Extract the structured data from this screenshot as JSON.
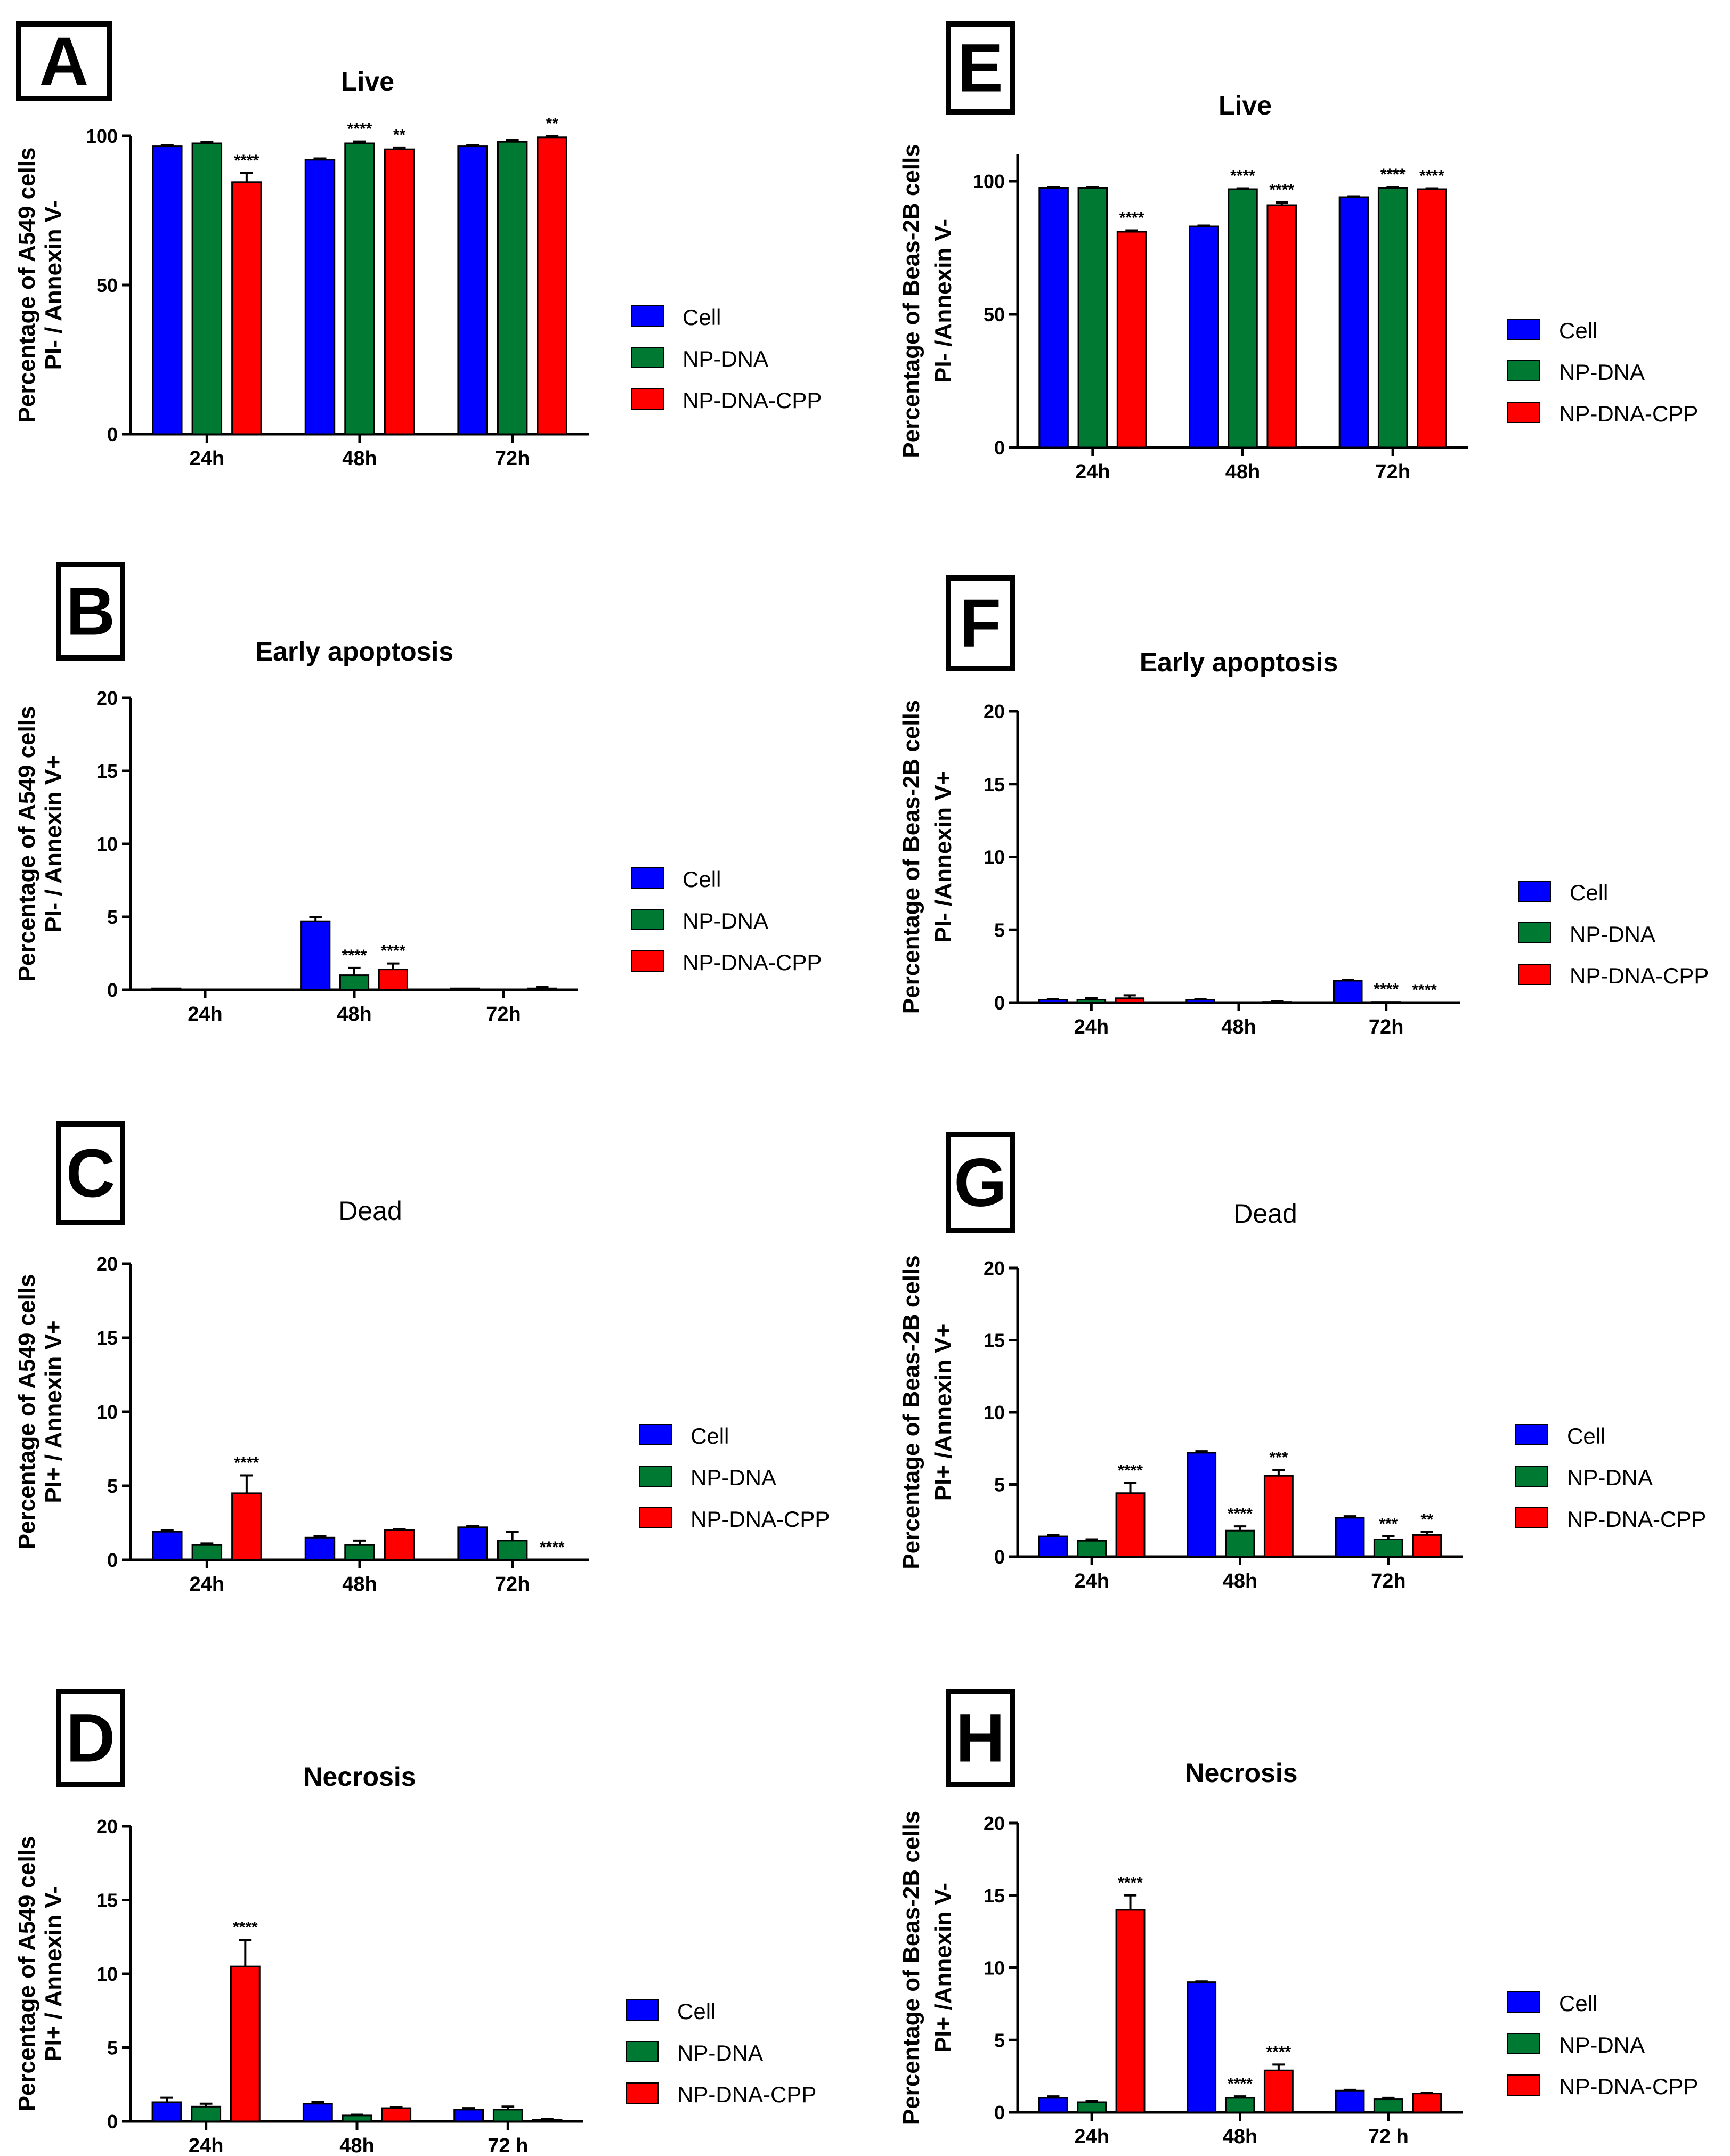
{
  "figure": {
    "colors": {
      "cell": "#0000ff",
      "npdna": "#007a33",
      "npdnacpp": "#ff0000"
    }
  },
  "chart_data": [
    {
      "panel": "A",
      "type": "bar",
      "title": "Live",
      "title_bold": true,
      "ylabel": [
        "Percentage of  A549 cells",
        "PI- / Annexin V-"
      ],
      "categories": [
        "24h",
        "48h",
        "72h"
      ],
      "ylim": [
        0,
        100
      ],
      "yticks": [
        0,
        50,
        100
      ],
      "legend": [
        "Cell",
        "NP-DNA",
        "NP-DNA-CPP"
      ],
      "series": [
        {
          "name": "Cell",
          "values": [
            96.5,
            92.0,
            96.5
          ],
          "errors": [
            0.4,
            0.4,
            0.4
          ],
          "annotations": [
            "",
            "",
            ""
          ]
        },
        {
          "name": "NP-DNA",
          "values": [
            97.5,
            97.5,
            98.0
          ],
          "errors": [
            0.4,
            0.6,
            0.6
          ],
          "annotations": [
            "",
            "****",
            ""
          ]
        },
        {
          "name": "NP-DNA-CPP",
          "values": [
            84.5,
            95.5,
            99.5
          ],
          "errors": [
            3.0,
            0.6,
            0.4
          ],
          "annotations": [
            "****",
            "**",
            "**"
          ]
        }
      ]
    },
    {
      "panel": "B",
      "type": "bar",
      "title": "Early apoptosis",
      "title_bold": true,
      "ylabel": [
        "Percentage of  A549 cells",
        "PI- / Annexin V+"
      ],
      "categories": [
        "24h",
        "48h",
        "72h"
      ],
      "ylim": [
        0,
        20
      ],
      "yticks": [
        0,
        5,
        10,
        15,
        20
      ],
      "legend": [
        "Cell",
        "NP-DNA",
        "NP-DNA-CPP"
      ],
      "series": [
        {
          "name": "Cell",
          "values": [
            0.1,
            4.7,
            0.1
          ],
          "errors": [
            0,
            0.3,
            0
          ],
          "annotations": [
            "",
            "",
            ""
          ]
        },
        {
          "name": "NP-DNA",
          "values": [
            0,
            1.0,
            0
          ],
          "errors": [
            0,
            0.5,
            0
          ],
          "annotations": [
            "",
            "****",
            ""
          ]
        },
        {
          "name": "NP-DNA-CPP",
          "values": [
            0,
            1.4,
            0.1
          ],
          "errors": [
            0,
            0.4,
            0.1
          ],
          "annotations": [
            "",
            "****",
            ""
          ]
        }
      ]
    },
    {
      "panel": "C",
      "type": "bar",
      "title": "Dead",
      "title_bold": false,
      "ylabel": [
        "Percentage of  A549 cells",
        "PI+ / Annexin V+"
      ],
      "categories": [
        "24h",
        "48h",
        "72h"
      ],
      "ylim": [
        0,
        20
      ],
      "yticks": [
        0,
        5,
        10,
        15,
        20
      ],
      "legend": [
        "Cell",
        "NP-DNA",
        "NP-DNA-CPP"
      ],
      "series": [
        {
          "name": "Cell",
          "values": [
            1.9,
            1.5,
            2.2
          ],
          "errors": [
            0.1,
            0.1,
            0.1
          ],
          "annotations": [
            "",
            "",
            ""
          ]
        },
        {
          "name": "NP-DNA",
          "values": [
            1.0,
            1.0,
            1.3
          ],
          "errors": [
            0.1,
            0.3,
            0.6
          ],
          "annotations": [
            "",
            "",
            ""
          ]
        },
        {
          "name": "NP-DNA-CPP",
          "values": [
            4.5,
            2.0,
            0
          ],
          "errors": [
            1.2,
            0.05,
            0
          ],
          "annotations": [
            "****",
            "",
            "****"
          ]
        }
      ]
    },
    {
      "panel": "D",
      "type": "bar",
      "title": "Necrosis",
      "title_bold": true,
      "ylabel": [
        "Percentage of  A549 cells",
        "PI+ / Annexin V-"
      ],
      "categories": [
        "24h",
        "48h",
        "72 h"
      ],
      "ylim": [
        0,
        20
      ],
      "yticks": [
        0,
        5,
        10,
        15,
        20
      ],
      "legend": [
        "Cell",
        "NP-DNA",
        "NP-DNA-CPP"
      ],
      "series": [
        {
          "name": "Cell",
          "values": [
            1.3,
            1.2,
            0.8
          ],
          "errors": [
            0.3,
            0.1,
            0.1
          ],
          "annotations": [
            "",
            "",
            ""
          ]
        },
        {
          "name": "NP-DNA",
          "values": [
            1.0,
            0.4,
            0.8
          ],
          "errors": [
            0.2,
            0.05,
            0.2
          ],
          "annotations": [
            "",
            "",
            ""
          ]
        },
        {
          "name": "NP-DNA-CPP",
          "values": [
            10.5,
            0.9,
            0.1
          ],
          "errors": [
            1.8,
            0.05,
            0.05
          ],
          "annotations": [
            "****",
            "",
            ""
          ]
        }
      ]
    },
    {
      "panel": "E",
      "type": "bar",
      "title": "Live",
      "title_bold": true,
      "ylabel": [
        "Percentage of Beas-2B cells",
        "PI- /Annexin V-"
      ],
      "categories": [
        "24h",
        "48h",
        "72h"
      ],
      "ylim": [
        0,
        110
      ],
      "yticks": [
        0,
        50,
        100
      ],
      "legend": [
        "Cell",
        "NP-DNA",
        "NP-DNA-CPP"
      ],
      "series": [
        {
          "name": "Cell",
          "values": [
            97.5,
            83.0,
            94.0
          ],
          "errors": [
            0.3,
            0.3,
            0.3
          ],
          "annotations": [
            "",
            "",
            ""
          ]
        },
        {
          "name": "NP-DNA",
          "values": [
            97.5,
            97.0,
            97.5
          ],
          "errors": [
            0.3,
            0.3,
            0.3
          ],
          "annotations": [
            "",
            "****",
            "****"
          ]
        },
        {
          "name": "NP-DNA-CPP",
          "values": [
            81.0,
            91.0,
            97.0
          ],
          "errors": [
            0.5,
            1.0,
            0.3
          ],
          "annotations": [
            "****",
            "****",
            "****"
          ]
        }
      ]
    },
    {
      "panel": "F",
      "type": "bar",
      "title": "Early apoptosis",
      "title_bold": true,
      "ylabel": [
        "Percentage of Beas-2B cells",
        "PI- /Annexin V+"
      ],
      "categories": [
        "24h",
        "48h",
        "72h"
      ],
      "ylim": [
        0,
        20
      ],
      "yticks": [
        0,
        5,
        10,
        15,
        20
      ],
      "legend": [
        "Cell",
        "NP-DNA",
        "NP-DNA-CPP"
      ],
      "series": [
        {
          "name": "Cell",
          "values": [
            0.2,
            0.2,
            1.5
          ],
          "errors": [
            0.05,
            0.05,
            0.05
          ],
          "annotations": [
            "",
            "",
            ""
          ]
        },
        {
          "name": "NP-DNA",
          "values": [
            0.2,
            0,
            0.05
          ],
          "errors": [
            0.1,
            0,
            0
          ],
          "annotations": [
            "",
            "",
            "****"
          ]
        },
        {
          "name": "NP-DNA-CPP",
          "values": [
            0.3,
            0.05,
            0
          ],
          "errors": [
            0.2,
            0.05,
            0
          ],
          "annotations": [
            "",
            "",
            "****"
          ]
        }
      ]
    },
    {
      "panel": "G",
      "type": "bar",
      "title": "Dead",
      "title_bold": false,
      "ylabel": [
        "Percentage of Beas-2B cells",
        "PI+ /Annexin V+"
      ],
      "categories": [
        "24h",
        "48h",
        "72h"
      ],
      "ylim": [
        0,
        20
      ],
      "yticks": [
        0,
        5,
        10,
        15,
        20
      ],
      "legend": [
        "Cell",
        "NP-DNA",
        "NP-DNA-CPP"
      ],
      "series": [
        {
          "name": "Cell",
          "values": [
            1.4,
            7.2,
            2.7
          ],
          "errors": [
            0.1,
            0.1,
            0.1
          ],
          "annotations": [
            "",
            "",
            ""
          ]
        },
        {
          "name": "NP-DNA",
          "values": [
            1.1,
            1.8,
            1.2
          ],
          "errors": [
            0.1,
            0.3,
            0.2
          ],
          "annotations": [
            "",
            "****",
            "***"
          ]
        },
        {
          "name": "NP-DNA-CPP",
          "values": [
            4.4,
            5.6,
            1.5
          ],
          "errors": [
            0.7,
            0.4,
            0.2
          ],
          "annotations": [
            "****",
            "***",
            "**"
          ]
        }
      ]
    },
    {
      "panel": "H",
      "type": "bar",
      "title": "Necrosis",
      "title_bold": true,
      "ylabel": [
        "Percentage of Beas-2B cells",
        "PI+ /Annexin V-"
      ],
      "categories": [
        "24h",
        "48h",
        "72 h"
      ],
      "ylim": [
        0,
        20
      ],
      "yticks": [
        0,
        5,
        10,
        15,
        20
      ],
      "legend": [
        "Cell",
        "NP-DNA",
        "NP-DNA-CPP"
      ],
      "series": [
        {
          "name": "Cell",
          "values": [
            1.0,
            9.0,
            1.5
          ],
          "errors": [
            0.1,
            0.05,
            0.05
          ],
          "annotations": [
            "",
            "",
            ""
          ]
        },
        {
          "name": "NP-DNA",
          "values": [
            0.7,
            1.0,
            0.9
          ],
          "errors": [
            0.1,
            0.1,
            0.1
          ],
          "annotations": [
            "",
            "****",
            ""
          ]
        },
        {
          "name": "NP-DNA-CPP",
          "values": [
            14.0,
            2.9,
            1.3
          ],
          "errors": [
            1.0,
            0.4,
            0.05
          ],
          "annotations": [
            "****",
            "****",
            ""
          ]
        }
      ]
    }
  ]
}
